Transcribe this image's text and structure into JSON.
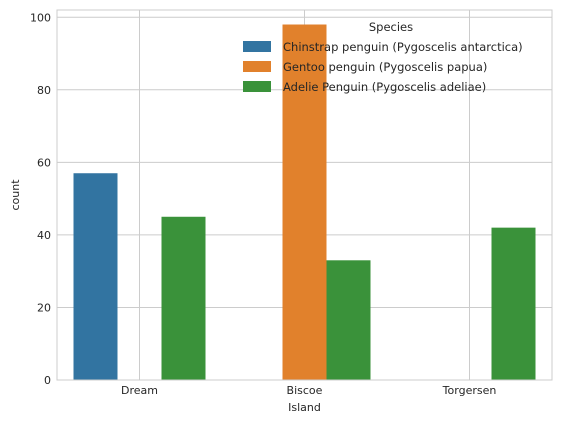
{
  "chart_data": {
    "type": "bar",
    "title": "",
    "xlabel": "Island",
    "ylabel": "count",
    "categories": [
      "Dream",
      "Biscoe",
      "Torgersen"
    ],
    "series": [
      {
        "name": "Chinstrap penguin (Pygoscelis antarctica)",
        "color": "#3274a1",
        "values": [
          57,
          null,
          null
        ]
      },
      {
        "name": "Gentoo penguin (Pygoscelis papua)",
        "color": "#e1812c",
        "values": [
          null,
          98,
          null
        ]
      },
      {
        "name": "Adelie Penguin (Pygoscelis adeliae)",
        "color": "#3a923a",
        "values": [
          45,
          33,
          42
        ]
      }
    ],
    "ylim": [
      0,
      102
    ],
    "yticks": [
      0,
      20,
      40,
      60,
      80,
      100
    ],
    "grid": true,
    "legend": {
      "title": "Species",
      "placement": "top-right"
    }
  }
}
